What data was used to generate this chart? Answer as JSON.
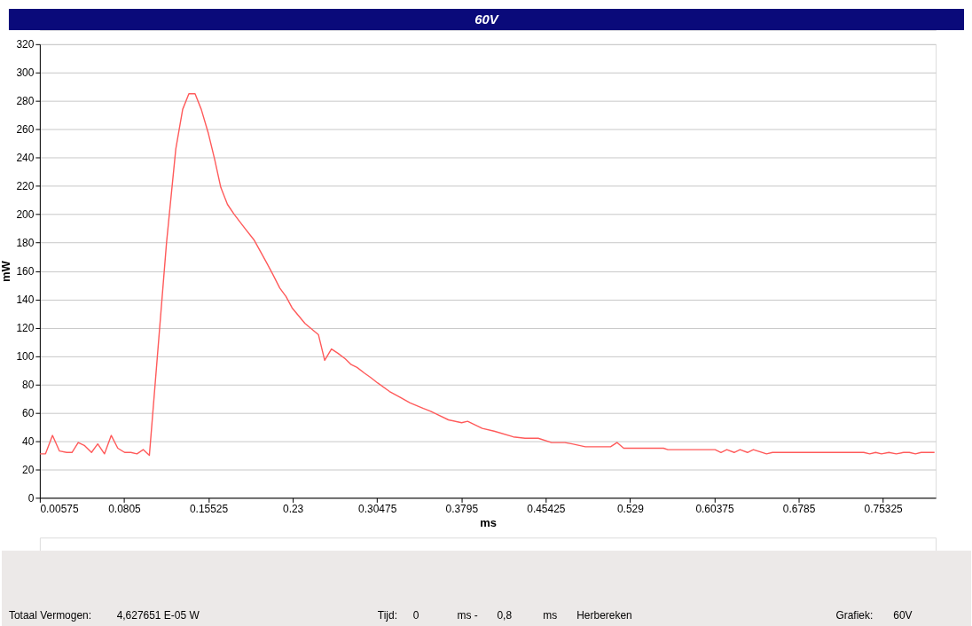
{
  "chart_data": {
    "type": "line",
    "title": "60V",
    "xlabel": "ms",
    "ylabel": "mW",
    "x": [
      0.0059,
      0.0108,
      0.017,
      0.0232,
      0.0296,
      0.0343,
      0.0398,
      0.0452,
      0.0516,
      0.0571,
      0.0631,
      0.0691,
      0.0749,
      0.081,
      0.0865,
      0.0919,
      0.0974,
      0.1029,
      0.1099,
      0.1181,
      0.1263,
      0.1324,
      0.1379,
      0.1434,
      0.1489,
      0.1552,
      0.1607,
      0.1662,
      0.1721,
      0.178,
      0.1867,
      0.1956,
      0.2019,
      0.2074,
      0.2121,
      0.2185,
      0.224,
      0.2294,
      0.2408,
      0.2528,
      0.2583,
      0.2643,
      0.27,
      0.2766,
      0.2818,
      0.287,
      0.2935,
      0.2988,
      0.3053,
      0.3158,
      0.3249,
      0.334,
      0.3458,
      0.3523,
      0.3576,
      0.368,
      0.3797,
      0.385,
      0.398,
      0.4085,
      0.4255,
      0.4359,
      0.4476,
      0.4594,
      0.4712,
      0.4777,
      0.4894,
      0.5117,
      0.5174,
      0.5234,
      0.5587,
      0.5626,
      0.6044,
      0.6096,
      0.6148,
      0.6213,
      0.6265,
      0.6331,
      0.6383,
      0.65,
      0.6553,
      0.7362,
      0.7415,
      0.7467,
      0.7519,
      0.7585,
      0.765,
      0.7715,
      0.7767,
      0.782,
      0.7871,
      0.7989
    ],
    "series": [
      {
        "color": "#ff5a5a",
        "values": [
          31,
          31,
          44,
          33,
          32,
          32,
          39,
          37,
          32,
          38,
          31,
          44,
          35,
          32,
          32,
          31,
          34,
          30,
          99,
          180,
          246,
          274,
          285,
          285,
          274,
          257,
          239,
          219,
          207,
          200,
          191,
          182,
          173,
          165,
          158,
          148,
          142,
          134,
          123,
          115,
          97,
          105,
          102,
          98,
          94,
          92,
          88,
          85,
          81,
          75,
          71,
          67,
          63,
          61,
          59,
          55,
          53,
          54,
          49,
          47,
          43,
          42,
          42,
          39,
          39,
          38,
          36,
          36,
          39,
          35,
          35,
          34,
          34,
          32,
          34,
          32,
          34,
          32,
          34,
          31,
          32,
          32,
          31,
          32,
          31,
          32,
          31,
          32,
          32,
          31,
          32,
          32
        ]
      }
    ],
    "xlim": [
      0.00575,
      0.8
    ],
    "xticks": [
      0.00575,
      0.0805,
      0.15525,
      0.23,
      0.30475,
      0.3795,
      0.45425,
      0.529,
      0.60375,
      0.6785,
      0.75325
    ],
    "ylim": [
      0,
      320
    ],
    "yticks": [
      0,
      20,
      40,
      60,
      80,
      100,
      120,
      140,
      160,
      180,
      200,
      220,
      240,
      260,
      280,
      300,
      320
    ],
    "grid": "y",
    "marker": "none",
    "line_style": "solid",
    "annotations": [
      "Totaal Vermogen:",
      "4,627651 E-05 W",
      "Tijd:",
      "0",
      "ms -",
      "0,8",
      "ms",
      "Herbereken",
      "Grafiek:",
      "60V"
    ]
  }
}
